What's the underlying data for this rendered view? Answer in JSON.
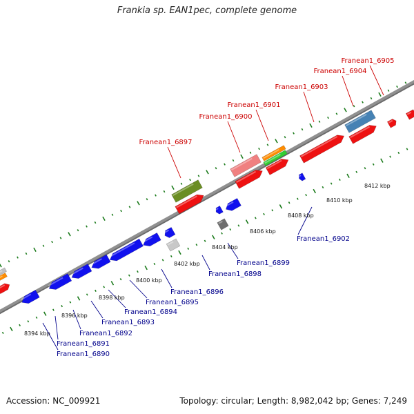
{
  "title": "Frankia sp. EAN1pec, complete genome",
  "footer": {
    "accession": "Accession: NC_009921",
    "summary": "Topology: circular; Length: 8,982,042 bp; Genes: 7,249"
  },
  "colors": {
    "top_label": "#cc0000",
    "bottom_label": "#00008b",
    "dots": "#1a7a1a",
    "backbone": "#909090"
  },
  "tick_labels": [
    "8394 kbp",
    "8396 kbp",
    "8398 kbp",
    "8400 kbp",
    "8402 kbp",
    "8404 kbp",
    "8406 kbp",
    "8408 kbp",
    "8410 kbp",
    "8412 kbp"
  ],
  "top_gene_labels": [
    "Franean1_6897",
    "Franean1_6900",
    "Franean1_6901",
    "Franean1_6903",
    "Franean1_6904",
    "Franean1_6905"
  ],
  "bottom_gene_labels": [
    "Franean1_6890",
    "Franean1_6891",
    "Franean1_6892",
    "Franean1_6893",
    "Franean1_6894",
    "Franean1_6895",
    "Franean1_6896",
    "Franean1_6898",
    "Franean1_6899",
    "Franean1_6902"
  ]
}
